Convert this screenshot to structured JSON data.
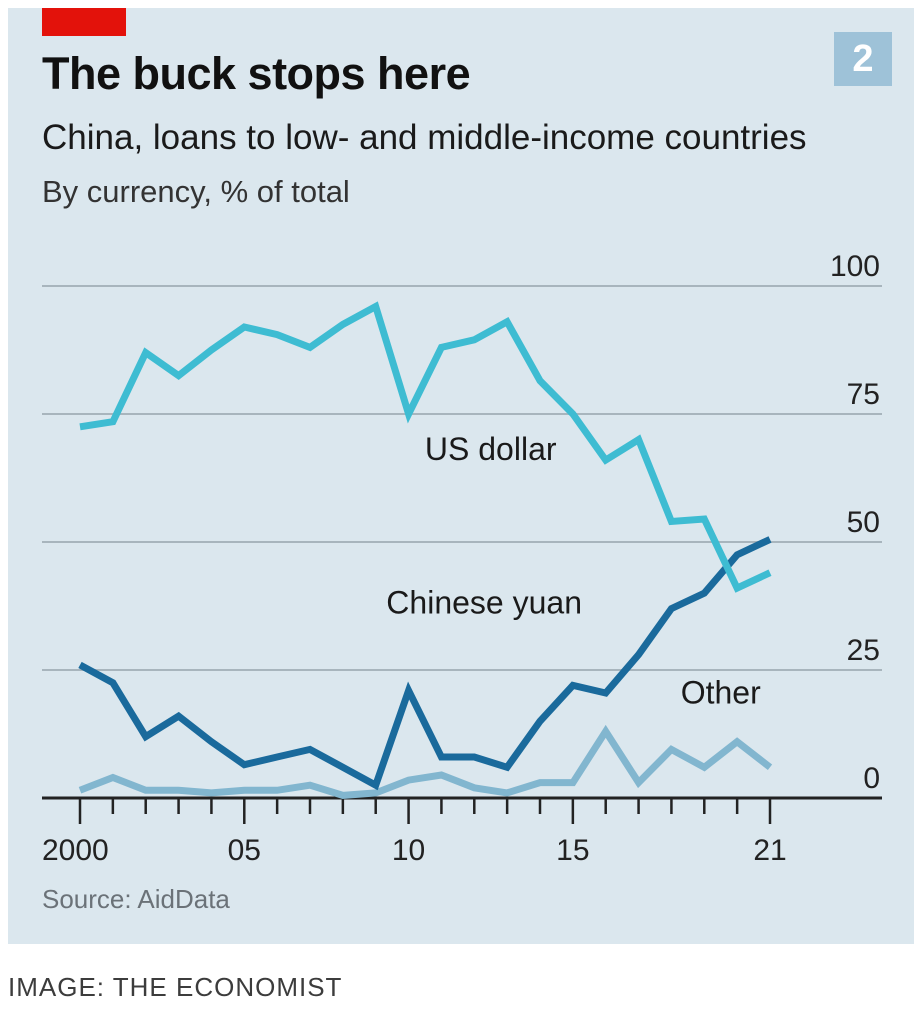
{
  "header": {
    "title": "The buck stops here",
    "subtitle": "China, loans to low- and middle-income countries",
    "unit_note": "By currency, % of total",
    "chart_number": "2"
  },
  "footer": {
    "source": "Source: AidData",
    "image_credit": "IMAGE: THE ECONOMIST"
  },
  "colors": {
    "brand_red": "#e3120b",
    "panel_bg": "#dbe7ee",
    "us_dollar": "#3ebcd2",
    "chinese_yuan": "#1a6a9c",
    "other": "#82b6cf",
    "gridline": "#a8b5bd",
    "axis": "#222222"
  },
  "chart_data": {
    "type": "line",
    "title": "The buck stops here",
    "subtitle": "China, loans to low- and middle-income countries",
    "ylabel": "By currency, % of total",
    "xlim": [
      2000,
      2021
    ],
    "ylim": [
      0,
      100
    ],
    "yticks": [
      0,
      25,
      50,
      75,
      100
    ],
    "ytick_labels": [
      "0",
      "25",
      "50",
      "75",
      "100"
    ],
    "xticks_labeled": [
      2000,
      2005,
      2010,
      2015,
      2021
    ],
    "xtick_labels": [
      "2000",
      "05",
      "10",
      "15",
      "21"
    ],
    "grid": "horizontal",
    "legend": "inline labels",
    "x": [
      2000,
      2001,
      2002,
      2003,
      2004,
      2005,
      2006,
      2007,
      2008,
      2009,
      2010,
      2011,
      2012,
      2013,
      2014,
      2015,
      2016,
      2017,
      2018,
      2019,
      2020,
      2021
    ],
    "series": [
      {
        "name": "US dollar",
        "color": "#3ebcd2",
        "values": [
          72.5,
          73.5,
          87,
          82.5,
          87.5,
          92,
          90.5,
          88,
          92.5,
          96,
          75,
          88,
          89.5,
          93,
          81.5,
          75,
          66,
          70,
          54,
          54.5,
          41,
          44
        ]
      },
      {
        "name": "Chinese yuan",
        "color": "#1a6a9c",
        "values": [
          26,
          22.5,
          12,
          16,
          11,
          6.5,
          8,
          9.5,
          6,
          2.5,
          21,
          8,
          8,
          6,
          15,
          22,
          20.5,
          28,
          37,
          40,
          47.5,
          50.5
        ]
      },
      {
        "name": "Other",
        "color": "#82b6cf",
        "values": [
          1.5,
          4,
          1.5,
          1.5,
          1,
          1.5,
          1.5,
          2.5,
          0.5,
          1,
          3.5,
          4.5,
          2,
          1,
          3,
          3,
          13,
          3,
          9.5,
          6,
          11,
          6
        ]
      }
    ],
    "annotations": [
      {
        "text": "US dollar",
        "x": 2012.5,
        "y": 66
      },
      {
        "text": "Chinese yuan",
        "x": 2012.3,
        "y": 36
      },
      {
        "text": "Other",
        "x": 2019.5,
        "y": 18.5
      }
    ]
  }
}
